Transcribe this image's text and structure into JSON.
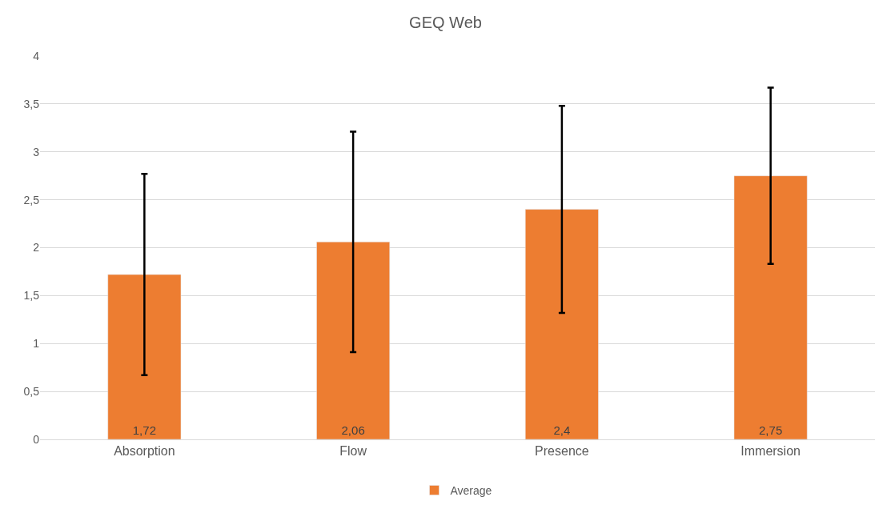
{
  "chart_data": {
    "type": "bar",
    "title": "GEQ Web",
    "categories": [
      "Absorption",
      "Flow",
      "Presence",
      "Immersion"
    ],
    "series": [
      {
        "name": "Average",
        "color": "#ed7d31",
        "values": [
          1.72,
          2.06,
          2.4,
          2.75
        ],
        "errors": [
          1.05,
          1.15,
          1.08,
          0.92
        ],
        "value_labels": [
          "1,72",
          "2,06",
          "2,4",
          "2,75"
        ]
      }
    ],
    "ylim": [
      0,
      4
    ],
    "yticks": [
      0,
      {
        "value": 0.5,
        "label": "0,5"
      },
      1,
      {
        "value": 1.5,
        "label": "1,5"
      },
      2,
      {
        "value": 2.5,
        "label": "2,5"
      },
      3,
      {
        "value": 3.5,
        "label": "3,5"
      },
      4
    ],
    "grid": "y",
    "legend": "bottom"
  }
}
